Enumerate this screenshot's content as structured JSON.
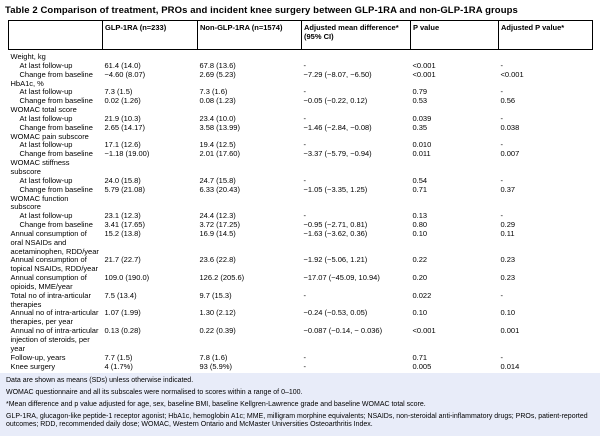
{
  "title": "Table 2 Comparison of treatment, PROs and incident knee surgery between GLP-1RA and non-GLP-1RA groups",
  "colors": {
    "footnote_bg": "#e8ecf9",
    "border": "#000000",
    "text": "#000000"
  },
  "table": {
    "columns": [
      {
        "label": ""
      },
      {
        "label": "GLP-1RA (n=233)"
      },
      {
        "label": "Non-GLP-1RA (n=1574)"
      },
      {
        "label": "Adjusted mean difference* (95% CI)"
      },
      {
        "label": "P value"
      },
      {
        "label": "Adjusted P value*"
      }
    ],
    "rows": [
      {
        "label": "Weight, kg",
        "indent": false,
        "cells": [
          "",
          "",
          "",
          "",
          ""
        ]
      },
      {
        "label": "At last follow-up",
        "indent": true,
        "cells": [
          "61.4 (14.0)",
          "67.8 (13.6)",
          "-",
          "<0.001",
          "-"
        ]
      },
      {
        "label": "Change from baseline",
        "indent": true,
        "cells": [
          "−4.60 (8.07)",
          "2.69 (5.23)",
          "−7.29 (−8.07, −6.50)",
          "<0.001",
          "<0.001"
        ]
      },
      {
        "label": "HbA1c, %",
        "indent": false,
        "cells": [
          "",
          "",
          "",
          "",
          ""
        ]
      },
      {
        "label": "At last follow-up",
        "indent": true,
        "cells": [
          "7.3 (1.5)",
          "7.3 (1.6)",
          "-",
          "0.79",
          "-"
        ]
      },
      {
        "label": "Change from baseline",
        "indent": true,
        "cells": [
          "0.02 (1.26)",
          "0.08 (1.23)",
          "−0.05 (−0.22, 0.12)",
          "0.53",
          "0.56"
        ]
      },
      {
        "label": "WOMAC total score",
        "indent": false,
        "cells": [
          "",
          "",
          "",
          "",
          ""
        ]
      },
      {
        "label": "At last follow-up",
        "indent": true,
        "cells": [
          "21.9 (10.3)",
          "23.4 (10.0)",
          "-",
          "0.039",
          "-"
        ]
      },
      {
        "label": "Change from baseline",
        "indent": true,
        "cells": [
          "2.65 (14.17)",
          "3.58 (13.99)",
          "−1.46 (−2.84, −0.08)",
          "0.35",
          "0.038"
        ]
      },
      {
        "label": "WOMAC pain subscore",
        "indent": false,
        "cells": [
          "",
          "",
          "",
          "",
          ""
        ]
      },
      {
        "label": "At last follow-up",
        "indent": true,
        "cells": [
          "17.1 (12.6)",
          "19.4 (12.5)",
          "-",
          "0.010",
          "-"
        ]
      },
      {
        "label": "Change from baseline",
        "indent": true,
        "cells": [
          "−1.18 (19.00)",
          "2.01 (17.60)",
          "−3.37 (−5.79, −0.94)",
          "0.011",
          "0.007"
        ]
      },
      {
        "label": "WOMAC stiffness subscore",
        "indent": false,
        "cells": [
          "",
          "",
          "",
          "",
          ""
        ]
      },
      {
        "label": "At last follow-up",
        "indent": true,
        "cells": [
          "24.0 (15.8)",
          "24.7 (15.8)",
          "-",
          "0.54",
          "-"
        ]
      },
      {
        "label": "Change from baseline",
        "indent": true,
        "cells": [
          "5.79 (21.08)",
          "6.33 (20.43)",
          "−1.05 (−3.35, 1.25)",
          "0.71",
          "0.37"
        ]
      },
      {
        "label": "WOMAC function subscore",
        "indent": false,
        "cells": [
          "",
          "",
          "",
          "",
          ""
        ]
      },
      {
        "label": "At last follow-up",
        "indent": true,
        "cells": [
          "23.1 (12.3)",
          "24.4 (12.3)",
          "-",
          "0.13",
          "-"
        ]
      },
      {
        "label": "Change from baseline",
        "indent": true,
        "cells": [
          "3.41 (17.65)",
          "3.72 (17.25)",
          "−0.95 (−2.71, 0.81)",
          "0.80",
          "0.29"
        ]
      },
      {
        "label": "Annual consumption of oral NSAIDs and acetaminophen, RDD/year",
        "indent": false,
        "cells": [
          "15.2 (13.8)",
          "16.9 (14.5)",
          "−1.63 (−3.62, 0.36)",
          "0.10",
          "0.11"
        ]
      },
      {
        "label": "Annual consumption of topical NSAIDs, RDD/year",
        "indent": false,
        "cells": [
          "21.7 (22.7)",
          "23.6 (22.8)",
          "−1.92 (−5.06, 1.21)",
          "0.22",
          "0.23"
        ]
      },
      {
        "label": "Annual consumption of opioids, MME/year",
        "indent": false,
        "cells": [
          "109.0 (190.0)",
          "126.2 (205.6)",
          "−17.07 (−45.09, 10.94)",
          "0.20",
          "0.23"
        ]
      },
      {
        "label": "Total no of intra-articular therapies",
        "indent": false,
        "cells": [
          "7.5 (13.4)",
          "9.7 (15.3)",
          "-",
          "0.022",
          "-"
        ]
      },
      {
        "label": "Annual no of intra-articular therapies, per year",
        "indent": false,
        "cells": [
          "1.07 (1.99)",
          "1.30 (2.12)",
          "−0.24 (−0.53, 0.05)",
          "0.10",
          "0.10"
        ]
      },
      {
        "label": "Annual no of intra-articular injection of steroids, per year",
        "indent": false,
        "cells": [
          "0.13 (0.28)",
          "0.22 (0.39)",
          "−0.087 (−0.14, − 0.036)",
          "<0.001",
          "0.001"
        ]
      },
      {
        "label": "Follow-up, years",
        "indent": false,
        "cells": [
          "7.7 (1.5)",
          "7.8 (1.6)",
          "-",
          "0.71",
          "-"
        ]
      },
      {
        "label": "Knee surgery",
        "indent": false,
        "cells": [
          "4 (1.7%)",
          "93 (5.9%)",
          "-",
          "0.005",
          "0.014"
        ]
      }
    ]
  },
  "footnotes": [
    "Data are shown as means (SDs) unless otherwise indicated.",
    "WOMAC questionnaire and all its subscales were normalised to scores within a range of 0–100.",
    "*Mean difference and p value adjusted for age, sex, baseline BMI, baseline Kellgren-Lawrence grade and baseline WOMAC total score.",
    "GLP-1RA, glucagon-like peptide-1 receptor agonist; HbA1c, hemoglobin A1c; MME, milligram morphine equivalents; NSAIDs, non-steroidal anti-inflammatory drugs; PROs, patient-reported outcomes; RDD, recommended daily dose; WOMAC, Western Ontario and McMaster Universities Osteoarthritis Index."
  ]
}
